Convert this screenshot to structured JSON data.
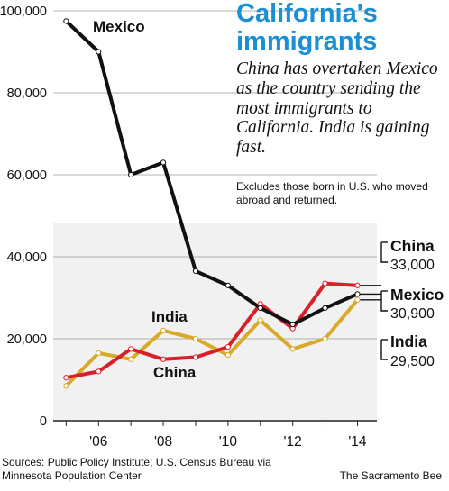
{
  "headline": {
    "title": "California's immigrants",
    "subtitle": "China has overtaken Mexico as the country sending the most immigrants to California. India is gaining fast.",
    "note": "Excludes those born in U.S. who moved abroad and returned."
  },
  "footer": {
    "sources": "Sources: Public Policy Institute; U.S. Census Bureau via Minnesota Population Center",
    "credit": "The Sacramento Bee"
  },
  "colors": {
    "mexico": "#111111",
    "china": "#d8202a",
    "india": "#d9aa28",
    "title": "#1b8fd1",
    "shade": "#f1f1f1"
  },
  "chart_data": {
    "type": "line",
    "x": [
      2005,
      2006,
      2007,
      2008,
      2009,
      2010,
      2011,
      2012,
      2013,
      2014
    ],
    "x_tick_values": [
      2006,
      2008,
      2010,
      2012,
      2014
    ],
    "x_tick_labels": [
      "'06",
      "'08",
      "'10",
      "'12",
      "'14"
    ],
    "y_tick_values": [
      0,
      20000,
      40000,
      60000,
      80000,
      100000
    ],
    "y_tick_labels": [
      "0",
      "20,000",
      "40,000",
      "60,000",
      "80,000",
      "100,000"
    ],
    "ylim": [
      0,
      100000
    ],
    "xlim": [
      2004.6,
      2014.6
    ],
    "grid": "horizontal",
    "series": [
      {
        "name": "Mexico",
        "color": "#111111",
        "values": [
          97500,
          90000,
          60000,
          63000,
          36500,
          33000,
          27500,
          23500,
          27500,
          30900
        ],
        "end_value_label": "30,900"
      },
      {
        "name": "China",
        "color": "#d8202a",
        "values": [
          10500,
          12000,
          17500,
          15000,
          15500,
          18000,
          28500,
          22500,
          33500,
          33000
        ],
        "end_value_label": "33,000"
      },
      {
        "name": "India",
        "color": "#d9aa28",
        "values": [
          8500,
          16500,
          15000,
          22000,
          20000,
          16000,
          24500,
          17500,
          20000,
          29500
        ],
        "end_value_label": "29,500"
      }
    ]
  }
}
